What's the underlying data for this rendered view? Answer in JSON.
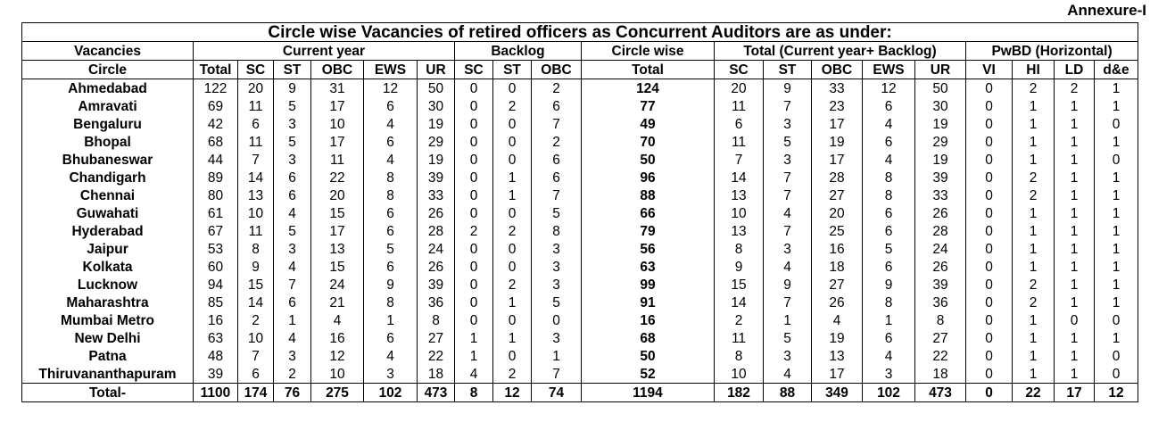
{
  "annexure": "Annexure-I",
  "title": "Circle wise Vacancies of retired officers as Concurrent Auditors are as under:",
  "header": {
    "vacancies": "Vacancies",
    "current_year": "Current year",
    "backlog": "Backlog",
    "circle_wise": "Circle wise",
    "total_group": "Total (Current year+ Backlog)",
    "pwbd": "PwBD (Horizontal)",
    "circle": "Circle",
    "cols": [
      "Total",
      "SC",
      "ST",
      "OBC",
      "EWS",
      "UR",
      "SC",
      "ST",
      "OBC",
      "Total",
      "SC",
      "ST",
      "OBC",
      "EWS",
      "UR",
      "VI",
      "HI",
      "LD",
      "d&e"
    ]
  },
  "rows": [
    {
      "circle": "Ahmedabad",
      "v": [
        "122",
        "20",
        "9",
        "31",
        "12",
        "50",
        "0",
        "0",
        "2",
        "124",
        "20",
        "9",
        "33",
        "12",
        "50",
        "0",
        "2",
        "2",
        "1"
      ]
    },
    {
      "circle": "Amravati",
      "v": [
        "69",
        "11",
        "5",
        "17",
        "6",
        "30",
        "0",
        "2",
        "6",
        "77",
        "11",
        "7",
        "23",
        "6",
        "30",
        "0",
        "1",
        "1",
        "1"
      ]
    },
    {
      "circle": "Bengaluru",
      "v": [
        "42",
        "6",
        "3",
        "10",
        "4",
        "19",
        "0",
        "0",
        "7",
        "49",
        "6",
        "3",
        "17",
        "4",
        "19",
        "0",
        "1",
        "1",
        "0"
      ]
    },
    {
      "circle": "Bhopal",
      "v": [
        "68",
        "11",
        "5",
        "17",
        "6",
        "29",
        "0",
        "0",
        "2",
        "70",
        "11",
        "5",
        "19",
        "6",
        "29",
        "0",
        "1",
        "1",
        "1"
      ]
    },
    {
      "circle": "Bhubaneswar",
      "v": [
        "44",
        "7",
        "3",
        "11",
        "4",
        "19",
        "0",
        "0",
        "6",
        "50",
        "7",
        "3",
        "17",
        "4",
        "19",
        "0",
        "1",
        "1",
        "0"
      ]
    },
    {
      "circle": "Chandigarh",
      "v": [
        "89",
        "14",
        "6",
        "22",
        "8",
        "39",
        "0",
        "1",
        "6",
        "96",
        "14",
        "7",
        "28",
        "8",
        "39",
        "0",
        "2",
        "1",
        "1"
      ]
    },
    {
      "circle": "Chennai",
      "v": [
        "80",
        "13",
        "6",
        "20",
        "8",
        "33",
        "0",
        "1",
        "7",
        "88",
        "13",
        "7",
        "27",
        "8",
        "33",
        "0",
        "2",
        "1",
        "1"
      ]
    },
    {
      "circle": "Guwahati",
      "v": [
        "61",
        "10",
        "4",
        "15",
        "6",
        "26",
        "0",
        "0",
        "5",
        "66",
        "10",
        "4",
        "20",
        "6",
        "26",
        "0",
        "1",
        "1",
        "1"
      ]
    },
    {
      "circle": "Hyderabad",
      "v": [
        "67",
        "11",
        "5",
        "17",
        "6",
        "28",
        "2",
        "2",
        "8",
        "79",
        "13",
        "7",
        "25",
        "6",
        "28",
        "0",
        "1",
        "1",
        "1"
      ]
    },
    {
      "circle": "Jaipur",
      "v": [
        "53",
        "8",
        "3",
        "13",
        "5",
        "24",
        "0",
        "0",
        "3",
        "56",
        "8",
        "3",
        "16",
        "5",
        "24",
        "0",
        "1",
        "1",
        "1"
      ]
    },
    {
      "circle": "Kolkata",
      "v": [
        "60",
        "9",
        "4",
        "15",
        "6",
        "26",
        "0",
        "0",
        "3",
        "63",
        "9",
        "4",
        "18",
        "6",
        "26",
        "0",
        "1",
        "1",
        "1"
      ]
    },
    {
      "circle": "Lucknow",
      "v": [
        "94",
        "15",
        "7",
        "24",
        "9",
        "39",
        "0",
        "2",
        "3",
        "99",
        "15",
        "9",
        "27",
        "9",
        "39",
        "0",
        "2",
        "1",
        "1"
      ]
    },
    {
      "circle": "Maharashtra",
      "v": [
        "85",
        "14",
        "6",
        "21",
        "8",
        "36",
        "0",
        "1",
        "5",
        "91",
        "14",
        "7",
        "26",
        "8",
        "36",
        "0",
        "2",
        "1",
        "1"
      ]
    },
    {
      "circle": "Mumbai Metro",
      "v": [
        "16",
        "2",
        "1",
        "4",
        "1",
        "8",
        "0",
        "0",
        "0",
        "16",
        "2",
        "1",
        "4",
        "1",
        "8",
        "0",
        "1",
        "0",
        "0"
      ]
    },
    {
      "circle": "New Delhi",
      "v": [
        "63",
        "10",
        "4",
        "16",
        "6",
        "27",
        "1",
        "1",
        "3",
        "68",
        "11",
        "5",
        "19",
        "6",
        "27",
        "0",
        "1",
        "1",
        "1"
      ]
    },
    {
      "circle": "Patna",
      "v": [
        "48",
        "7",
        "3",
        "12",
        "4",
        "22",
        "1",
        "0",
        "1",
        "50",
        "8",
        "3",
        "13",
        "4",
        "22",
        "0",
        "1",
        "1",
        "0"
      ]
    },
    {
      "circle": "Thiruvananthapuram",
      "v": [
        "39",
        "6",
        "2",
        "10",
        "3",
        "18",
        "4",
        "2",
        "7",
        "52",
        "10",
        "4",
        "17",
        "3",
        "18",
        "0",
        "1",
        "1",
        "0"
      ]
    }
  ],
  "total": {
    "label": "Total-",
    "v": [
      "1100",
      "174",
      "76",
      "275",
      "102",
      "473",
      "8",
      "12",
      "74",
      "1194",
      "182",
      "88",
      "349",
      "102",
      "473",
      "0",
      "22",
      "17",
      "12"
    ]
  }
}
